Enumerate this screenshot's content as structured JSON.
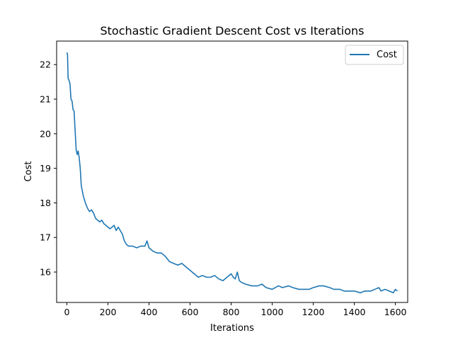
{
  "chart_data": {
    "type": "line",
    "title": "Stochastic Gradient Descent Cost vs Iterations",
    "xlabel": "Iterations",
    "ylabel": "Cost",
    "xlim": [
      -50,
      1660
    ],
    "ylim": [
      15.12,
      22.68
    ],
    "xticks": [
      0,
      200,
      400,
      600,
      800,
      1000,
      1200,
      1400,
      1600
    ],
    "xtick_labels": [
      "0",
      "200",
      "400",
      "600",
      "800",
      "1000",
      "1200",
      "1400",
      "1600"
    ],
    "yticks": [
      16,
      17,
      18,
      19,
      20,
      21,
      22
    ],
    "ytick_labels": [
      "16",
      "17",
      "18",
      "19",
      "20",
      "21",
      "22"
    ],
    "grid": false,
    "legend_position": "upper right",
    "series": [
      {
        "name": "Cost",
        "color": "#1f77b4",
        "x": [
          0,
          3,
          6,
          10,
          15,
          20,
          25,
          30,
          35,
          40,
          45,
          50,
          55,
          60,
          65,
          70,
          75,
          80,
          90,
          100,
          110,
          120,
          130,
          140,
          150,
          160,
          170,
          180,
          190,
          200,
          210,
          220,
          230,
          240,
          250,
          260,
          270,
          280,
          290,
          300,
          320,
          340,
          360,
          380,
          390,
          400,
          420,
          440,
          460,
          480,
          500,
          520,
          540,
          560,
          580,
          600,
          620,
          640,
          660,
          680,
          700,
          720,
          740,
          760,
          780,
          800,
          810,
          820,
          830,
          840,
          850,
          870,
          900,
          930,
          950,
          970,
          1000,
          1030,
          1050,
          1080,
          1100,
          1130,
          1150,
          1180,
          1200,
          1230,
          1250,
          1280,
          1300,
          1330,
          1350,
          1380,
          1400,
          1430,
          1450,
          1480,
          1500,
          1520,
          1530,
          1550,
          1570,
          1590,
          1600,
          1610
        ],
        "values": [
          22.35,
          22.3,
          21.6,
          21.55,
          21.45,
          21.0,
          20.95,
          20.7,
          20.65,
          20.1,
          19.55,
          19.4,
          19.5,
          19.3,
          19.0,
          18.5,
          18.35,
          18.2,
          18.0,
          17.85,
          17.75,
          17.8,
          17.7,
          17.55,
          17.5,
          17.45,
          17.5,
          17.4,
          17.35,
          17.3,
          17.25,
          17.3,
          17.35,
          17.2,
          17.3,
          17.2,
          17.1,
          16.9,
          16.8,
          16.75,
          16.75,
          16.7,
          16.75,
          16.75,
          16.9,
          16.7,
          16.6,
          16.55,
          16.55,
          16.45,
          16.3,
          16.25,
          16.2,
          16.25,
          16.15,
          16.05,
          15.95,
          15.85,
          15.9,
          15.85,
          15.85,
          15.9,
          15.8,
          15.75,
          15.85,
          15.95,
          15.85,
          15.8,
          16.0,
          15.75,
          15.7,
          15.65,
          15.6,
          15.6,
          15.65,
          15.55,
          15.5,
          15.6,
          15.55,
          15.6,
          15.55,
          15.5,
          15.5,
          15.5,
          15.55,
          15.6,
          15.6,
          15.55,
          15.5,
          15.5,
          15.45,
          15.45,
          15.45,
          15.4,
          15.45,
          15.45,
          15.5,
          15.55,
          15.45,
          15.5,
          15.45,
          15.4,
          15.5,
          15.45
        ]
      }
    ]
  }
}
